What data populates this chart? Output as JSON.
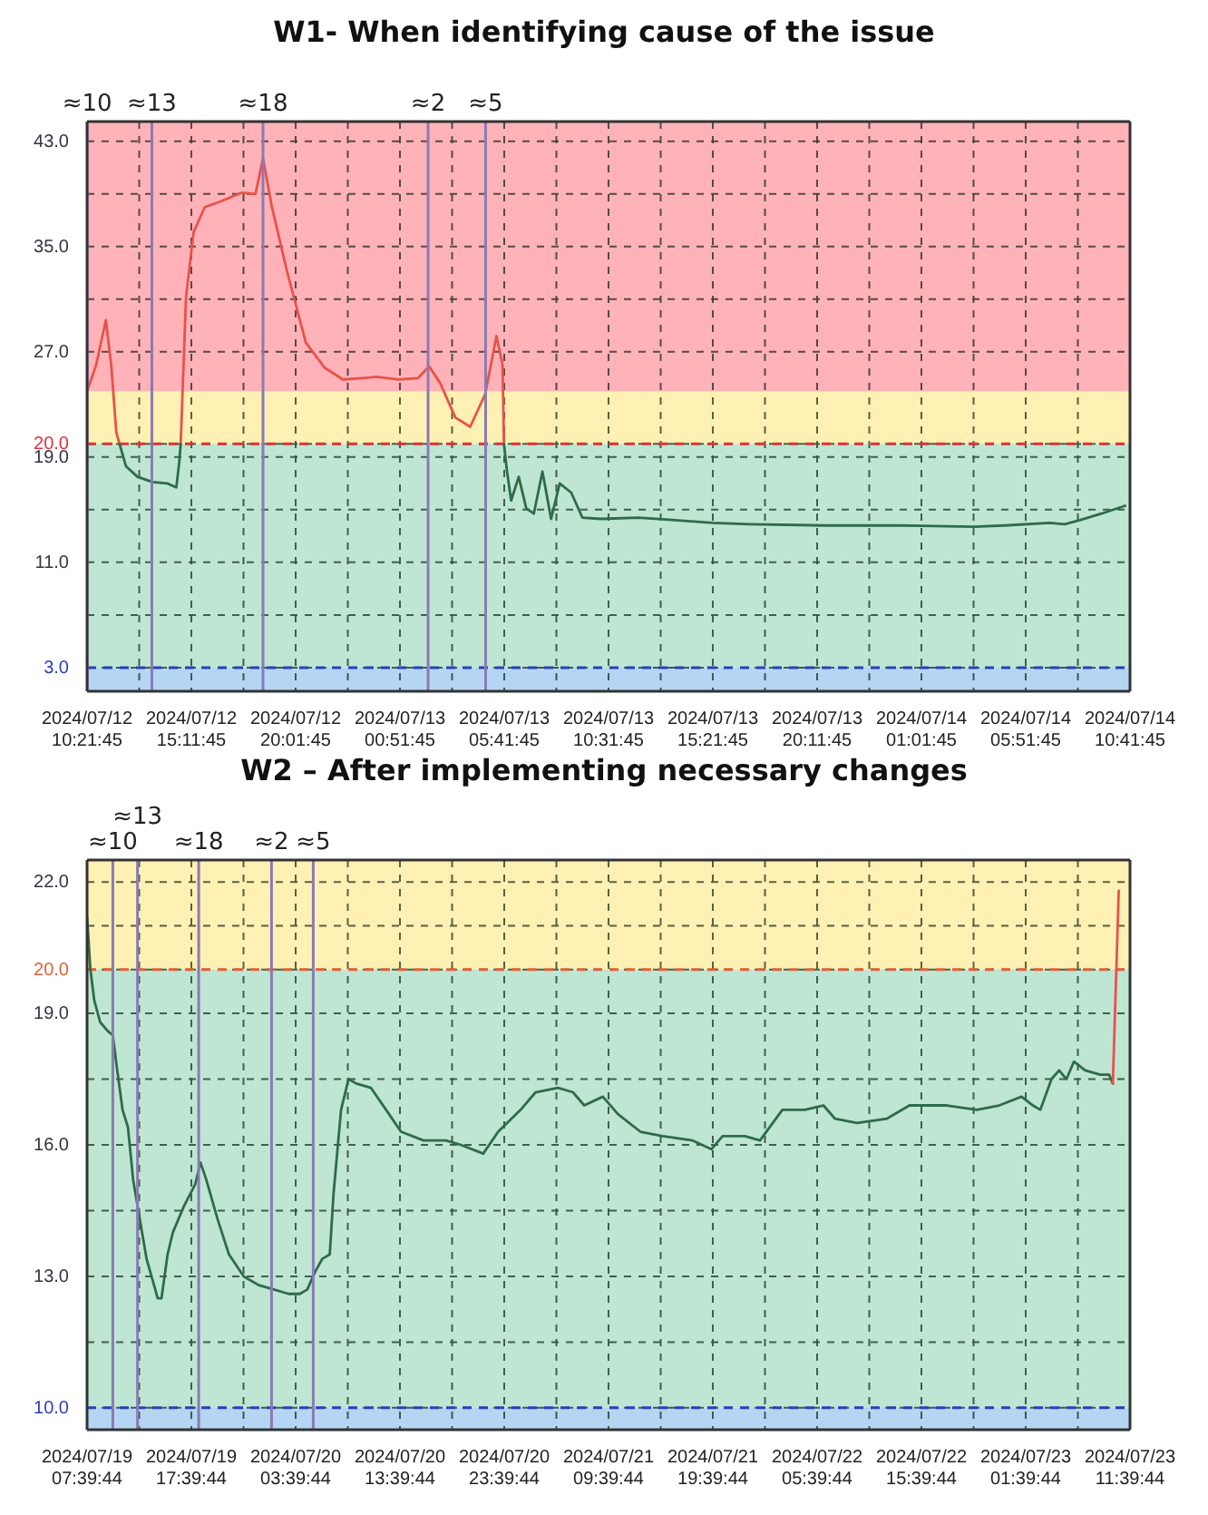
{
  "chart_data": [
    {
      "type": "line",
      "title": "W1- When identifying cause of the issue",
      "grid": true,
      "xlim": [
        "2024-07-12T10:21:45",
        "2024-07-14T10:41:45"
      ],
      "xticks": [
        {
          "value": "2024-07-12T10:21:45",
          "label": "2024/07/12 10:21:45"
        },
        {
          "value": "2024-07-12T12:46:45",
          "label": null
        },
        {
          "value": "2024-07-12T15:11:45",
          "label": "2024/07/12 15:11:45"
        },
        {
          "value": "2024-07-12T17:36:45",
          "label": null
        },
        {
          "value": "2024-07-12T20:01:45",
          "label": "2024/07/12 20:01:45"
        },
        {
          "value": "2024-07-12T22:26:45",
          "label": null
        },
        {
          "value": "2024-07-13T00:51:45",
          "label": "2024/07/13 00:51:45"
        },
        {
          "value": "2024-07-13T03:16:45",
          "label": null
        },
        {
          "value": "2024-07-13T05:41:45",
          "label": "2024/07/13 05:41:45"
        },
        {
          "value": "2024-07-13T08:06:45",
          "label": null
        },
        {
          "value": "2024-07-13T10:31:45",
          "label": "2024/07/13 10:31:45"
        },
        {
          "value": "2024-07-13T12:56:45",
          "label": null
        },
        {
          "value": "2024-07-13T15:21:45",
          "label": "2024/07/13 15:21:45"
        },
        {
          "value": "2024-07-13T17:46:45",
          "label": null
        },
        {
          "value": "2024-07-13T20:11:45",
          "label": "2024/07/13 20:11:45"
        },
        {
          "value": "2024-07-13T22:36:45",
          "label": null
        },
        {
          "value": "2024-07-14T01:01:45",
          "label": "2024/07/14 01:01:45"
        },
        {
          "value": "2024-07-14T03:26:45",
          "label": null
        },
        {
          "value": "2024-07-14T05:51:45",
          "label": "2024/07/14 05:51:45"
        },
        {
          "value": "2024-07-14T08:16:45",
          "label": null
        },
        {
          "value": "2024-07-14T10:41:45",
          "label": "2024/07/14 10:41:45"
        }
      ],
      "ylim": [
        1.2,
        44.5
      ],
      "yticks": [
        {
          "value": 3,
          "label": "3.0"
        },
        {
          "value": 7,
          "label": null
        },
        {
          "value": 11,
          "label": "11.0"
        },
        {
          "value": 15,
          "label": null
        },
        {
          "value": 19,
          "label": "19.0"
        },
        {
          "value": 20,
          "label": "20.0"
        },
        {
          "value": 27,
          "label": "27.0"
        },
        {
          "value": 31,
          "label": null
        },
        {
          "value": 35,
          "label": "35.0"
        },
        {
          "value": 39,
          "label": null
        },
        {
          "value": 43,
          "label": "43.0"
        }
      ],
      "bands": [
        {
          "axis": "y",
          "from": 24,
          "to": 44.5,
          "color": "#ffb3b8"
        },
        {
          "axis": "y",
          "from": 20,
          "to": 24,
          "color": "#fff0b3"
        },
        {
          "axis": "y",
          "from": 3,
          "to": 20,
          "color": "#bfe6d2"
        },
        {
          "axis": "y",
          "from": 1.2,
          "to": 3,
          "color": "#b5d6f2"
        }
      ],
      "ref_lines": [
        {
          "axis": "y",
          "value": 20,
          "color": "#e0303a",
          "line_style": "dashed"
        },
        {
          "axis": "y",
          "value": 3,
          "color": "#2a3fbf",
          "line_style": "dashed"
        },
        {
          "axis": "x",
          "value": "2024-07-12T10:22",
          "label": "≈10",
          "color": "#8a7bb5",
          "line_style": "solid"
        },
        {
          "axis": "x",
          "value": "2024-07-12T13:22",
          "label": "≈13",
          "color": "#8a7bb5",
          "line_style": "solid"
        },
        {
          "axis": "x",
          "value": "2024-07-12T18:31",
          "label": "≈18",
          "color": "#8a7bb5",
          "line_style": "solid"
        },
        {
          "axis": "x",
          "value": "2024-07-13T02:10",
          "label": "≈2",
          "color": "#8a7bb5",
          "line_style": "solid"
        },
        {
          "axis": "x",
          "value": "2024-07-13T04:50",
          "label": "≈5",
          "color": "#8a7bb5",
          "line_style": "solid"
        }
      ],
      "x": [
        "2024-07-12T10:21:45",
        "2024-07-12T10:47",
        "2024-07-12T11:14",
        "2024-07-12T11:29",
        "2024-07-12T11:43",
        "2024-07-12T11:52",
        "2024-07-12T12:10",
        "2024-07-12T12:42",
        "2024-07-12T13:24",
        "2024-07-12T14:05",
        "2024-07-12T14:30",
        "2024-07-12T14:38",
        "2024-07-12T14:42",
        "2024-07-12T14:57",
        "2024-07-12T15:18",
        "2024-07-12T15:49",
        "2024-07-12T16:30",
        "2024-07-12T17:33",
        "2024-07-12T18:10",
        "2024-07-12T18:31",
        "2024-07-12T18:55",
        "2024-07-12T19:37",
        "2024-07-12T20:30",
        "2024-07-12T21:22",
        "2024-07-12T22:13",
        "2024-07-12T23:06",
        "2024-07-12T23:47",
        "2024-07-13T00:49",
        "2024-07-13T01:42",
        "2024-07-13T02:13",
        "2024-07-13T02:44",
        "2024-07-13T03:26",
        "2024-07-13T04:07",
        "2024-07-13T04:49",
        "2024-07-13T05:20",
        "2024-07-13T05:37",
        "2024-07-13T05:41",
        "2024-07-13T05:49",
        "2024-07-13T06:01",
        "2024-07-13T06:22",
        "2024-07-13T06:43",
        "2024-07-13T07:04",
        "2024-07-13T07:28",
        "2024-07-13T07:52",
        "2024-07-13T08:16",
        "2024-07-13T08:48",
        "2024-07-13T09:19",
        "2024-07-13T10:11",
        "2024-07-13T11:55",
        "2024-07-13T13:38",
        "2024-07-13T15:22",
        "2024-07-13T17:07",
        "2024-07-13T20:34",
        "2024-07-14T00:04",
        "2024-07-14T03:28",
        "2024-07-14T04:52",
        "2024-07-14T06:58",
        "2024-07-14T07:40",
        "2024-07-14T08:22",
        "2024-07-14T09:22",
        "2024-07-14T10:28"
      ],
      "series": [
        {
          "color": "#e8524a",
          "values": [
            24,
            26,
            29.4,
            26,
            20.9,
            20,
            null,
            null,
            null,
            null,
            null,
            null,
            20,
            31.2,
            36.1,
            38,
            38.4,
            39.1,
            39,
            41.7,
            38.1,
            33.2,
            27.7,
            25.8,
            24.9,
            25,
            25.1,
            24.9,
            25,
            25.9,
            24.6,
            22,
            21.3,
            23.8,
            28.2,
            26,
            20,
            null,
            null,
            null,
            null,
            null,
            null,
            null,
            null,
            null,
            null,
            null,
            null,
            null,
            null,
            null,
            null,
            null,
            null,
            null,
            null,
            null,
            null,
            null,
            null
          ]
        },
        {
          "color": "#2e6b4a",
          "values": [
            null,
            null,
            null,
            null,
            null,
            20,
            18.3,
            17.5,
            17.1,
            17,
            16.7,
            18.6,
            20,
            null,
            null,
            null,
            null,
            null,
            null,
            null,
            null,
            null,
            null,
            null,
            null,
            null,
            null,
            null,
            null,
            null,
            null,
            null,
            null,
            null,
            null,
            null,
            20,
            18,
            15.7,
            17.5,
            15.1,
            14.7,
            17.9,
            14.3,
            17,
            16.3,
            14.4,
            14.3,
            14.4,
            14.2,
            14,
            13.9,
            13.8,
            13.8,
            13.7,
            13.8,
            14,
            13.9,
            14.2,
            14.7,
            15.3
          ]
        }
      ]
    },
    {
      "type": "line",
      "title": "W2 – After implementing necessary changes",
      "grid": true,
      "xlim": [
        "2024-07-19T07:39:44",
        "2024-07-23T11:39:44"
      ],
      "xticks": [
        {
          "value": "2024-07-19T07:39:44",
          "label": "2024/07/19 07:39:44"
        },
        {
          "value": "2024-07-19T12:39:44",
          "label": null
        },
        {
          "value": "2024-07-19T17:39:44",
          "label": "2024/07/19 17:39:44"
        },
        {
          "value": "2024-07-19T22:39:44",
          "label": null
        },
        {
          "value": "2024-07-20T03:39:44",
          "label": "2024/07/20 03:39:44"
        },
        {
          "value": "2024-07-20T08:39:44",
          "label": null
        },
        {
          "value": "2024-07-20T13:39:44",
          "label": "2024/07/20 13:39:44"
        },
        {
          "value": "2024-07-20T18:39:44",
          "label": null
        },
        {
          "value": "2024-07-20T23:39:44",
          "label": "2024/07/20 23:39:44"
        },
        {
          "value": "2024-07-21T04:39:44",
          "label": null
        },
        {
          "value": "2024-07-21T09:39:44",
          "label": "2024/07/21 09:39:44"
        },
        {
          "value": "2024-07-21T14:39:44",
          "label": null
        },
        {
          "value": "2024-07-21T19:39:44",
          "label": "2024/07/21 19:39:44"
        },
        {
          "value": "2024-07-22T00:39:44",
          "label": null
        },
        {
          "value": "2024-07-22T05:39:44",
          "label": "2024/07/22 05:39:44"
        },
        {
          "value": "2024-07-22T10:39:44",
          "label": null
        },
        {
          "value": "2024-07-22T15:39:44",
          "label": "2024/07/22 15:39:44"
        },
        {
          "value": "2024-07-22T20:39:44",
          "label": null
        },
        {
          "value": "2024-07-23T01:39:44",
          "label": "2024/07/23 01:39:44"
        },
        {
          "value": "2024-07-23T06:39:44",
          "label": null
        },
        {
          "value": "2024-07-23T11:39:44",
          "label": "2024/07/23 11:39:44"
        }
      ],
      "ylim": [
        9.5,
        22.5
      ],
      "yticks": [
        {
          "value": 10,
          "label": "10.0"
        },
        {
          "value": 11.5,
          "label": null
        },
        {
          "value": 13,
          "label": "13.0"
        },
        {
          "value": 14.5,
          "label": null
        },
        {
          "value": 16,
          "label": "16.0"
        },
        {
          "value": 17.5,
          "label": null
        },
        {
          "value": 19,
          "label": "19.0"
        },
        {
          "value": 20,
          "label": "20.0"
        },
        {
          "value": 21,
          "label": null
        },
        {
          "value": 22,
          "label": "22.0"
        }
      ],
      "bands": [
        {
          "axis": "y",
          "from": 20,
          "to": 22.5,
          "color": "#fff0b3"
        },
        {
          "axis": "y",
          "from": 10,
          "to": 20,
          "color": "#bfe6d2"
        },
        {
          "axis": "y",
          "from": 9.5,
          "to": 10,
          "color": "#b5d6f2"
        }
      ],
      "ref_lines": [
        {
          "axis": "y",
          "value": 20,
          "color": "#e0603a",
          "line_style": "dashed"
        },
        {
          "axis": "y",
          "value": 10,
          "color": "#2a3fbf",
          "line_style": "dashed"
        },
        {
          "axis": "x",
          "value": "2024-07-19T10:08",
          "label": "≈10",
          "color": "#8a7bb5",
          "line_style": "solid"
        },
        {
          "axis": "x",
          "value": "2024-07-19T12:30",
          "label": "≈13",
          "color": "#8a7bb5",
          "line_style": "solid"
        },
        {
          "axis": "x",
          "value": "2024-07-19T18:22",
          "label": "≈18",
          "color": "#8a7bb5",
          "line_style": "solid"
        },
        {
          "axis": "x",
          "value": "2024-07-20T01:21",
          "label": "≈2",
          "color": "#8a7bb5",
          "line_style": "solid"
        },
        {
          "axis": "x",
          "value": "2024-07-20T05:21",
          "label": "≈5",
          "color": "#8a7bb5",
          "line_style": "solid"
        }
      ],
      "x": [
        "2024-07-19T07:39:44",
        "2024-07-19T07:59",
        "2024-07-19T08:21",
        "2024-07-19T08:55",
        "2024-07-19T09:38",
        "2024-07-19T10:08",
        "2024-07-19T10:30",
        "2024-07-19T11:04",
        "2024-07-19T11:35",
        "2024-07-19T12:05",
        "2024-07-19T12:39",
        "2024-07-19T13:22",
        "2024-07-19T14:05",
        "2024-07-19T14:26",
        "2024-07-19T14:48",
        "2024-07-19T15:23",
        "2024-07-19T15:53",
        "2024-07-19T16:57",
        "2024-07-19T18:02",
        "2024-07-19T18:32",
        "2024-07-19T19:06",
        "2024-07-19T20:11",
        "2024-07-19T21:16",
        "2024-07-19T22:41",
        "2024-07-20T00:07",
        "2024-07-20T01:34",
        "2024-07-20T02:59",
        "2024-07-20T04:04",
        "2024-07-20T04:47",
        "2024-07-20T05:31",
        "2024-07-20T06:13",
        "2024-07-20T06:56",
        "2024-07-20T07:18",
        "2024-07-20T08:01",
        "2024-07-20T08:44",
        "2024-07-20T09:28",
        "2024-07-20T10:53",
        "2024-07-20T12:20",
        "2024-07-20T13:46",
        "2024-07-20T15:55",
        "2024-07-20T18:04",
        "2024-07-20T19:30",
        "2024-07-20T21:39",
        "2024-07-20T23:05",
        "2024-07-21T01:14",
        "2024-07-21T02:40",
        "2024-07-21T04:49",
        "2024-07-21T06:15",
        "2024-07-21T07:20",
        "2024-07-21T09:07",
        "2024-07-21T10:34",
        "2024-07-21T12:43",
        "2024-07-21T14:52",
        "2024-07-21T17:44",
        "2024-07-21T19:31",
        "2024-07-21T20:36",
        "2024-07-21T22:45",
        "2024-07-22T00:11",
        "2024-07-22T02:20",
        "2024-07-22T04:29",
        "2024-07-22T06:16",
        "2024-07-22T07:22",
        "2024-07-22T09:29",
        "2024-07-22T12:22",
        "2024-07-22T14:31",
        "2024-07-22T18:06",
        "2024-07-22T20:58",
        "2024-07-22T23:07",
        "2024-07-23T01:16",
        "2024-07-23T02:21",
        "2024-07-23T03:04",
        "2024-07-23T04:08",
        "2024-07-23T04:52",
        "2024-07-23T05:34",
        "2024-07-23T06:17",
        "2024-07-23T07:22",
        "2024-07-23T08:48",
        "2024-07-23T09:40",
        "2024-07-23T10:01",
        "2024-07-23T10:35"
      ],
      "series": [
        {
          "color": "#2e6b4a",
          "values": [
            21.2,
            20,
            19.3,
            18.8,
            18.6,
            18.5,
            17.8,
            16.8,
            16.4,
            15.2,
            14.4,
            13.4,
            12.8,
            12.5,
            12.5,
            13.5,
            14,
            14.6,
            15.1,
            15.6,
            15.2,
            14.3,
            13.5,
            13,
            12.8,
            12.7,
            12.6,
            12.6,
            12.7,
            13.1,
            13.4,
            13.5,
            14.9,
            16.8,
            17.5,
            17.4,
            17.3,
            16.8,
            16.3,
            16.1,
            16.1,
            16,
            15.8,
            16.3,
            16.8,
            17.2,
            17.3,
            17.2,
            16.9,
            17.1,
            16.7,
            16.3,
            16.2,
            16.1,
            15.9,
            16.2,
            16.2,
            16.1,
            16.8,
            16.8,
            16.9,
            16.6,
            16.5,
            16.6,
            16.9,
            16.9,
            16.8,
            16.9,
            17.1,
            16.9,
            16.8,
            17.5,
            17.7,
            17.5,
            17.9,
            17.7,
            17.6,
            17.6,
            17.4,
            null
          ]
        },
        {
          "color": "#e8524a",
          "values": [
            null,
            null,
            null,
            null,
            null,
            null,
            null,
            null,
            null,
            null,
            null,
            null,
            null,
            null,
            null,
            null,
            null,
            null,
            null,
            null,
            null,
            null,
            null,
            null,
            null,
            null,
            null,
            null,
            null,
            null,
            null,
            null,
            null,
            null,
            null,
            null,
            null,
            null,
            null,
            null,
            null,
            null,
            null,
            null,
            null,
            null,
            null,
            null,
            null,
            null,
            null,
            null,
            null,
            null,
            null,
            null,
            null,
            null,
            null,
            null,
            null,
            null,
            null,
            null,
            null,
            null,
            null,
            null,
            null,
            null,
            null,
            null,
            null,
            null,
            null,
            null,
            null,
            null,
            17.4,
            21.8
          ]
        }
      ]
    }
  ]
}
